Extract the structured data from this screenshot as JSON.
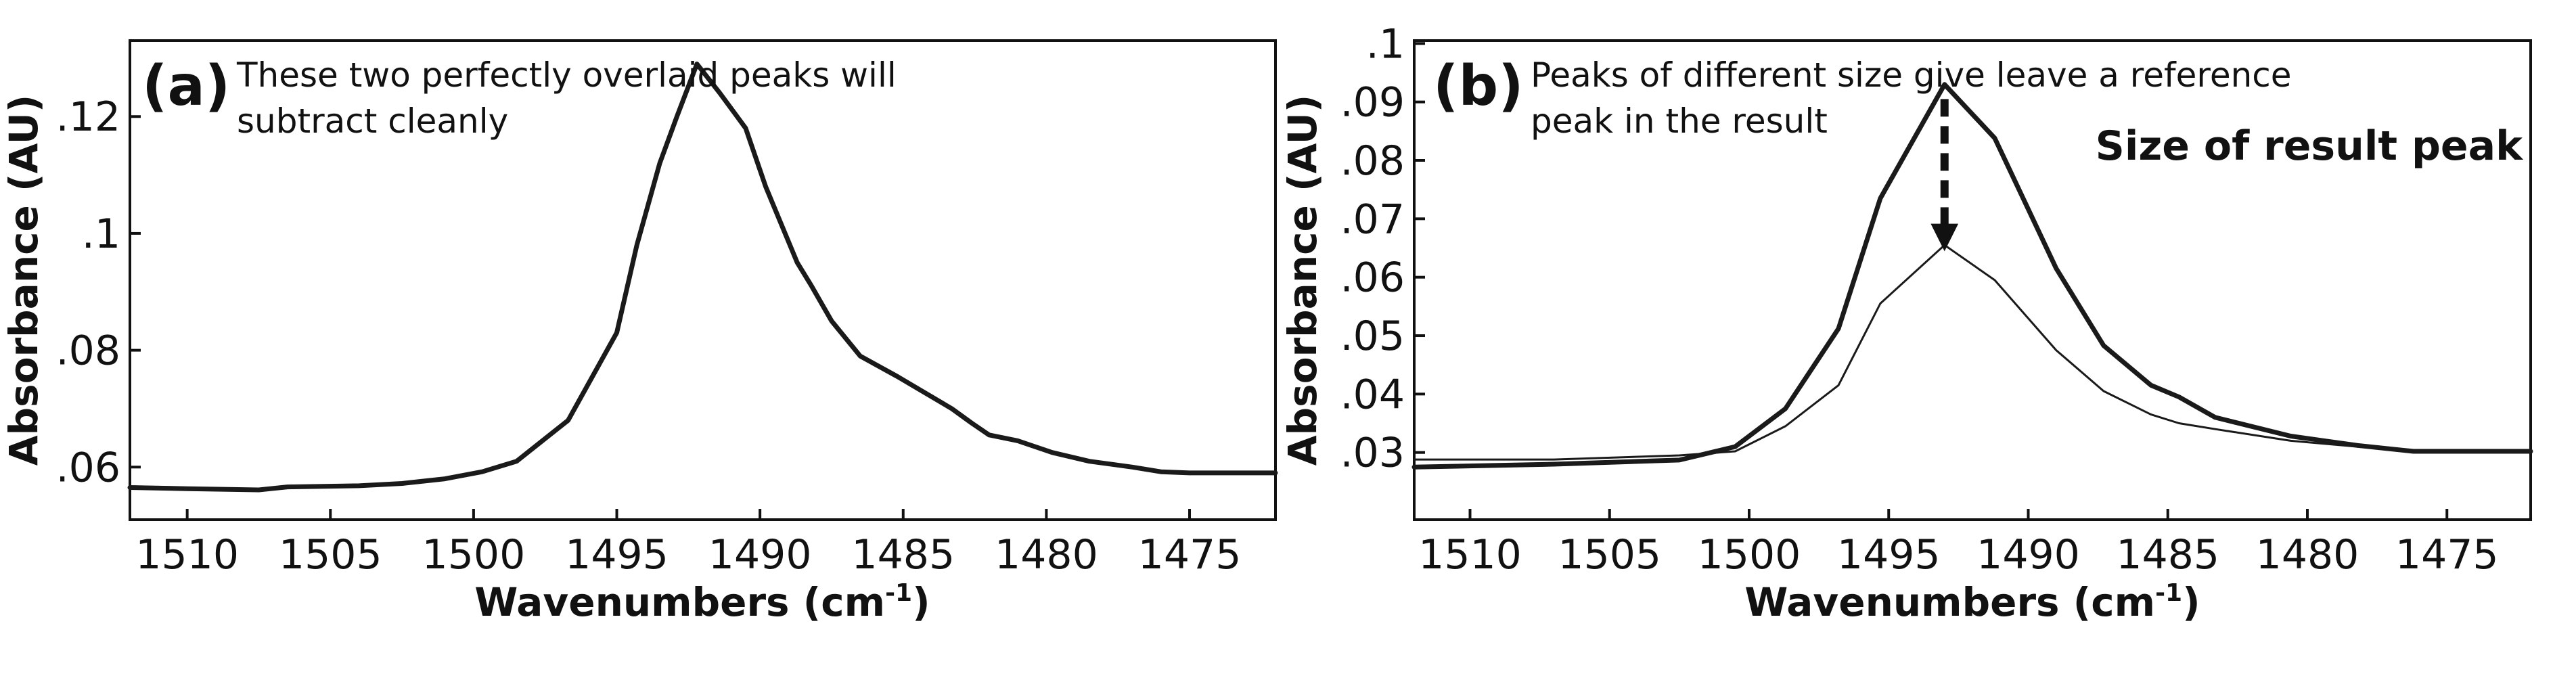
{
  "chart_data": [
    {
      "type": "line",
      "panel_label": "(a)",
      "annotation": [
        "These two perfectly overlaid peaks will",
        "subtract cleanly"
      ],
      "xlabel": "Wavenumbers (cm",
      "xlabel_sup": "-1",
      "xlabel_close": ")",
      "ylabel": "Absorbance (AU)",
      "xlim": [
        1512,
        1472
      ],
      "ylim": [
        0.051,
        0.133
      ],
      "x_reversed": true,
      "x_ticks": [
        1510,
        1505,
        1500,
        1495,
        1490,
        1485,
        1480,
        1475
      ],
      "x_tick_labels": [
        "1510",
        "1505",
        "1500",
        "1495",
        "1490",
        "1485",
        "1480",
        "1475"
      ],
      "y_ticks": [
        0.06,
        0.08,
        0.1,
        0.12
      ],
      "y_tick_labels": [
        ".06",
        ".08",
        ".1",
        ".12"
      ],
      "grid": false,
      "series": [
        {
          "stroke_width": 7,
          "x": [
            1512,
            1510,
            1507.5,
            1506.5,
            1504,
            1502.5,
            1501,
            1499.7,
            1498.5,
            1496.7,
            1495,
            1494.3,
            1493.5,
            1492.9,
            1492.2,
            1491.4,
            1490.8,
            1490.5,
            1489.8,
            1488.7,
            1488.2,
            1487.5,
            1486.5,
            1485.2,
            1483.3,
            1482.6,
            1482,
            1481,
            1479.8,
            1478.5,
            1477,
            1476,
            1475,
            1474,
            1472
          ],
          "y": [
            0.0565,
            0.0563,
            0.0561,
            0.0566,
            0.0568,
            0.0572,
            0.058,
            0.0592,
            0.061,
            0.068,
            0.083,
            0.098,
            0.112,
            0.12,
            0.129,
            0.124,
            0.12,
            0.118,
            0.108,
            0.095,
            0.091,
            0.085,
            0.079,
            0.0755,
            0.07,
            0.0675,
            0.0655,
            0.0645,
            0.0625,
            0.061,
            0.06,
            0.0592,
            0.059,
            0.059,
            0.059
          ]
        }
      ]
    },
    {
      "type": "line",
      "panel_label": "(b)",
      "annotation": [
        "Peaks of different size give leave a reference",
        "peak in the result"
      ],
      "callout": "Size of result peak",
      "xlabel": "Wavenumbers (cm",
      "xlabel_sup": "-1",
      "xlabel_close": ")",
      "ylabel": "Absorbance (AU)",
      "xlim": [
        1512,
        1472
      ],
      "ylim": [
        0.0185,
        0.1005
      ],
      "x_reversed": true,
      "x_ticks": [
        1510,
        1505,
        1500,
        1495,
        1490,
        1485,
        1480,
        1475
      ],
      "x_tick_labels": [
        "1510",
        "1505",
        "1500",
        "1495",
        "1490",
        "1485",
        "1480",
        "1475"
      ],
      "y_ticks": [
        0.03,
        0.04,
        0.05,
        0.06,
        0.07,
        0.08,
        0.09,
        0.1
      ],
      "y_tick_labels": [
        ".03",
        ".04",
        ".05",
        ".06",
        ".07",
        ".08",
        ".09",
        ".1"
      ],
      "grid": false,
      "series": [
        {
          "stroke_width": 7,
          "x": [
            1512,
            1507,
            1502.5,
            1500.5,
            1498.7,
            1496.8,
            1495.3,
            1493,
            1491.2,
            1489,
            1487.3,
            1485.6,
            1484.6,
            1483.3,
            1480.6,
            1478.2,
            1476.2,
            1472
          ],
          "y": [
            0.0275,
            0.028,
            0.0287,
            0.031,
            0.0375,
            0.0512,
            0.0735,
            0.093,
            0.0838,
            0.0615,
            0.0483,
            0.0415,
            0.0395,
            0.036,
            0.0328,
            0.0312,
            0.0302,
            0.0302
          ]
        },
        {
          "stroke_width": 3,
          "x": [
            1512,
            1507,
            1502.5,
            1500.5,
            1498.7,
            1496.8,
            1495.3,
            1493,
            1491.2,
            1489,
            1487.3,
            1485.6,
            1484.6,
            1483.3,
            1480.6,
            1478.2,
            1476.2,
            1472
          ],
          "y": [
            0.0288,
            0.0288,
            0.0295,
            0.0302,
            0.0345,
            0.0415,
            0.0555,
            0.0655,
            0.0595,
            0.0475,
            0.0405,
            0.0365,
            0.035,
            0.034,
            0.032,
            0.031,
            0.0302,
            0.0302
          ]
        }
      ],
      "arrow": {
        "x": 1493,
        "y_from": 0.0905,
        "y_to": 0.0668
      }
    }
  ]
}
